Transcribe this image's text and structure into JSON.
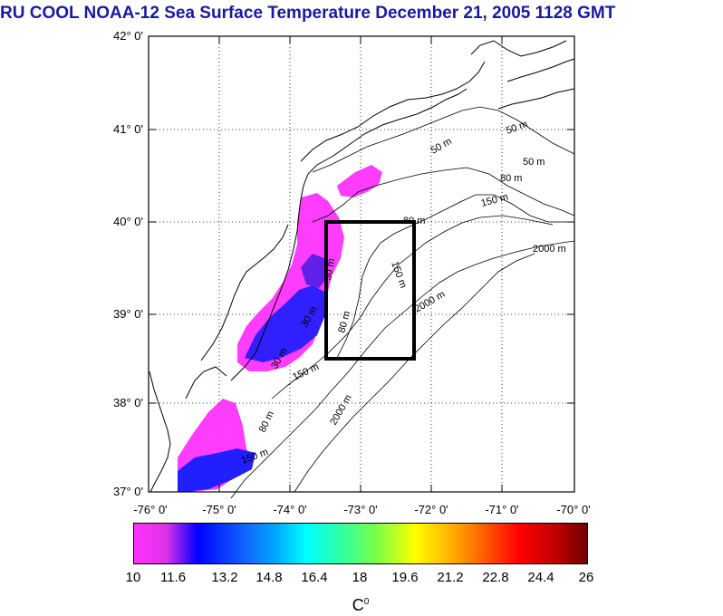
{
  "title": "RU COOL  NOAA-12 Sea Surface Temperature December 21, 2005 1128 GMT",
  "map": {
    "lat_labels": [
      "42° 0'",
      "41° 0'",
      "40° 0'",
      "39° 0'",
      "38° 0'",
      "37° 0'"
    ],
    "lon_labels": [
      "-76° 0'",
      "-75° 0'",
      "-74° 0'",
      "-73° 0'",
      "-72° 0'",
      "-71° 0'",
      "-70° 0'"
    ],
    "contour_labels": {
      "m50a": "50 m",
      "m50b": "50 m",
      "m50c": "50 m",
      "m80a": "80 m",
      "m80b": "80 m",
      "m80c": "80 m",
      "m80d": "80 m",
      "m150a": "150 m",
      "m150b": "150 m",
      "m150c": "150 m",
      "m150d": "150 m",
      "m2000a": "2000 m",
      "m2000b": "2000 m",
      "m2000c": "2000 m",
      "m30a": "30 m",
      "m30b": "30 m",
      "m30c": "30 m"
    },
    "study_box": {
      "lon_min": -73.5,
      "lon_max": -72.3,
      "lat_min": 38.5,
      "lat_max": 40.0
    }
  },
  "colorbar": {
    "ticks": [
      "10",
      "11.6",
      "13.2",
      "14.8",
      "16.4",
      "18",
      "19.6",
      "21.2",
      "22.8",
      "24.4",
      "26"
    ],
    "unit_base": "C",
    "unit_sup": "0"
  },
  "colors": {
    "title": "#1a1aa0",
    "sst_low": "#ff33ff",
    "sst_mid": "#0000ff",
    "sst_high": "#700000"
  }
}
